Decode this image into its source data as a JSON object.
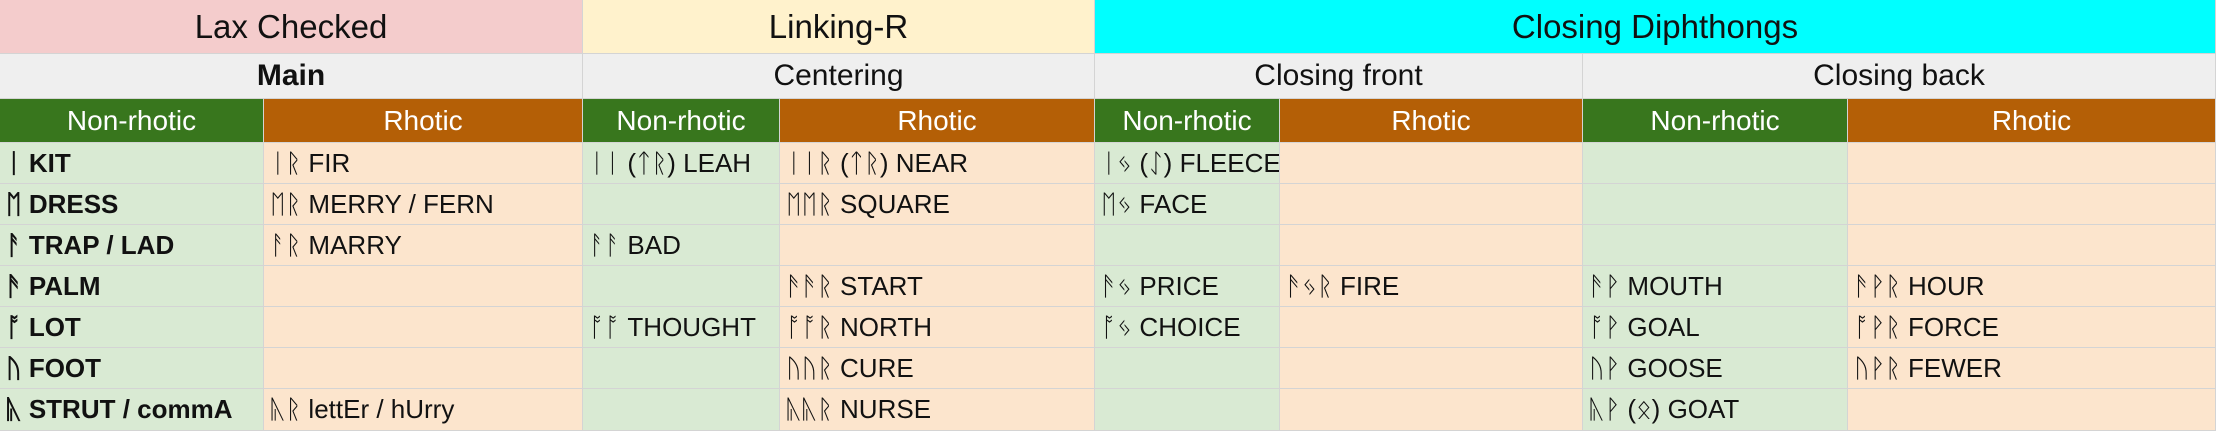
{
  "header": {
    "group1": "Lax Checked",
    "group2": "Linking-R",
    "group3": "Closing Diphthongs",
    "sub_main": "Main",
    "sub_centering": "Centering",
    "sub_closing_front": "Closing front",
    "sub_closing_back": "Closing back",
    "nonrhotic": "Non-rhotic",
    "rhotic": "Rhotic"
  },
  "colors": {
    "lax_bg": "#f4cccc",
    "linking_bg": "#fff2cc",
    "closing_bg": "#00ffff",
    "subheader_bg": "#efefef",
    "nonrhotic_header": "#38761d",
    "rhotic_header": "#b45f06",
    "nonrhotic_cell": "#d9ead3",
    "rhotic_cell": "#fce5cd"
  },
  "rows": [
    {
      "cells": [
        "ᛁ KIT",
        "ᛁᚱ FIR",
        "ᛁᛁ (ᛏᚱ) LEAH",
        "ᛁᛁᚱ (ᛏᚱ) NEAR",
        "ᛁᛃ (ᛇ) FLEECE",
        "",
        "",
        ""
      ]
    },
    {
      "cells": [
        "ᛖ DRESS",
        "ᛖᚱ MERRY / FERN",
        "",
        "ᛖᛖᚱ SQUARE",
        "ᛖᛃ FACE",
        "",
        "",
        ""
      ]
    },
    {
      "cells": [
        "ᚨ TRAP / LAD",
        "ᚨᚱ MARRY",
        "ᚨᚨ BAD",
        "",
        "",
        "",
        "",
        ""
      ]
    },
    {
      "cells": [
        "ᚫ PALM",
        "",
        "",
        "ᚫᚫᚱ START",
        "ᚫᛃ PRICE",
        "ᚫᛃᚱ FIRE",
        "ᚫᚹ MOUTH",
        "ᚫᚹᚱ HOUR"
      ]
    },
    {
      "cells": [
        "ᚩ LOT",
        "",
        "ᚩᚩ THOUGHT",
        "ᚩᚩᚱ NORTH",
        "ᚩᛃ CHOICE",
        "",
        "ᚩᚹ GOAL",
        "ᚩᚹᚱ FORCE"
      ]
    },
    {
      "cells": [
        "ᚢ FOOT",
        "",
        "",
        "ᚢᚢᚱ CURE",
        "",
        "",
        "ᚢᚹ GOOSE",
        "ᚢᚹᚱ FEWER"
      ]
    },
    {
      "cells": [
        "ᚣ STRUT / commA",
        "ᚣᚱ lettEr / hUrry",
        "",
        "ᚣᚣᚱ NURSE",
        "",
        "",
        "ᚣᚹ (ᛟ) GOAT",
        ""
      ]
    }
  ]
}
